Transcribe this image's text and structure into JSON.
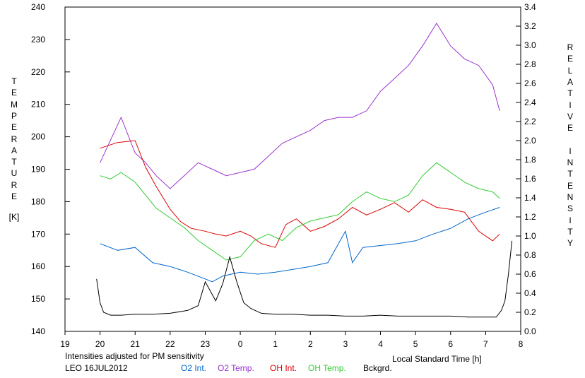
{
  "chart_data": {
    "type": "line",
    "y_left_label": "TEMPERATURE",
    "y_left_unit": "[K]",
    "y_right_label": "RELATIVE INTENSITY",
    "xlabel": "Local Standard Time [h]",
    "xlim": [
      19,
      32
    ],
    "x_tick_labels": [
      "19",
      "20",
      "21",
      "22",
      "23",
      "0",
      "1",
      "2",
      "3",
      "4",
      "5",
      "6",
      "7",
      "8"
    ],
    "ylim_left": [
      140,
      240
    ],
    "ylim_right": [
      0.0,
      3.4
    ],
    "left_ticks": [
      140,
      150,
      160,
      170,
      180,
      190,
      200,
      210,
      220,
      230,
      240
    ],
    "right_ticks": [
      "0.0",
      "0.2",
      "0.4",
      "0.6",
      "0.8",
      "1.0",
      "1.2",
      "1.4",
      "1.6",
      "1.8",
      "2.0",
      "2.2",
      "2.4",
      "2.6",
      "2.8",
      "3.0",
      "3.2",
      "3.4"
    ],
    "annotation": "Intensities adjusted for PM sensitivity",
    "annotation_color": "#00cc00",
    "station_date": "LEO 16JUL2012",
    "series": [
      {
        "name": "O2 Int.",
        "axis": "right",
        "color": "#0066cc",
        "x": [
          20.0,
          20.5,
          21.0,
          21.5,
          22.0,
          22.5,
          23.0,
          23.2,
          23.5,
          24.0,
          24.5,
          25.0,
          25.5,
          26.0,
          26.5,
          27.0,
          27.2,
          27.5,
          28.0,
          28.5,
          29.0,
          29.5,
          30.0,
          30.5,
          31.0,
          31.4
        ],
        "y": [
          0.92,
          0.85,
          0.88,
          0.72,
          0.68,
          0.62,
          0.55,
          0.52,
          0.58,
          0.62,
          0.6,
          0.62,
          0.65,
          0.68,
          0.72,
          1.05,
          0.72,
          0.88,
          0.9,
          0.92,
          0.95,
          1.02,
          1.08,
          1.18,
          1.25,
          1.3
        ]
      },
      {
        "name": "O2 Temp.",
        "axis": "left",
        "color": "#9933cc",
        "x": [
          20.0,
          20.3,
          20.6,
          21.0,
          21.3,
          21.6,
          22.0,
          22.4,
          22.8,
          23.2,
          23.6,
          24.4,
          24.8,
          25.2,
          25.6,
          26.0,
          26.4,
          26.8,
          27.2,
          27.6,
          28.0,
          28.4,
          28.8,
          29.2,
          29.6,
          30.0,
          30.4,
          30.8,
          31.2,
          31.4
        ],
        "y": [
          192,
          199,
          206,
          195,
          192,
          188,
          184,
          188,
          192,
          190,
          188,
          190,
          194,
          198,
          200,
          202,
          205,
          206,
          206,
          208,
          214,
          218,
          222,
          228,
          235,
          228,
          224,
          222,
          216,
          208
        ]
      },
      {
        "name": "OH Int.",
        "axis": "right",
        "color": "#dd0000",
        "x": [
          20.0,
          20.5,
          21.0,
          21.3,
          21.6,
          22.0,
          22.3,
          22.6,
          23.0,
          23.3,
          23.6,
          24.0,
          24.3,
          24.6,
          25.0,
          25.3,
          25.6,
          26.0,
          26.4,
          26.8,
          27.2,
          27.6,
          28.0,
          28.4,
          28.8,
          29.2,
          29.6,
          30.0,
          30.4,
          30.8,
          31.2,
          31.4
        ],
        "y": [
          1.92,
          1.98,
          2.0,
          1.72,
          1.52,
          1.28,
          1.15,
          1.08,
          1.05,
          1.02,
          1.0,
          1.05,
          1.0,
          0.92,
          0.88,
          1.12,
          1.18,
          1.05,
          1.1,
          1.18,
          1.3,
          1.22,
          1.28,
          1.35,
          1.25,
          1.38,
          1.3,
          1.28,
          1.25,
          1.05,
          0.95,
          1.02
        ]
      },
      {
        "name": "OH Temp.",
        "axis": "left",
        "color": "#33cc33",
        "x": [
          20.0,
          20.3,
          20.6,
          21.0,
          21.3,
          21.6,
          22.0,
          22.4,
          22.8,
          23.2,
          23.6,
          24.0,
          24.4,
          24.8,
          25.2,
          25.6,
          26.0,
          26.4,
          26.8,
          27.2,
          27.6,
          28.0,
          28.4,
          28.8,
          29.2,
          29.6,
          30.0,
          30.4,
          30.8,
          31.2,
          31.4
        ],
        "y": [
          188,
          187,
          189,
          186,
          182,
          178,
          175,
          172,
          168,
          165,
          162,
          163,
          168,
          170,
          168,
          172,
          174,
          175,
          176,
          180,
          183,
          181,
          180,
          182,
          188,
          192,
          189,
          186,
          184,
          183,
          181
        ]
      },
      {
        "name": "Bckgrd.",
        "axis": "right",
        "color": "#000000",
        "x": [
          19.9,
          20.0,
          20.1,
          20.3,
          20.6,
          21.0,
          21.5,
          22.0,
          22.5,
          22.8,
          23.0,
          23.3,
          23.5,
          23.7,
          23.9,
          24.1,
          24.3,
          24.6,
          25.0,
          25.5,
          26.0,
          26.5,
          27.0,
          27.5,
          28.0,
          28.5,
          29.0,
          29.5,
          30.0,
          30.5,
          31.0,
          31.3,
          31.45,
          31.55,
          31.65,
          31.75
        ],
        "y": [
          0.55,
          0.3,
          0.2,
          0.17,
          0.17,
          0.18,
          0.18,
          0.19,
          0.22,
          0.27,
          0.52,
          0.32,
          0.5,
          0.78,
          0.52,
          0.3,
          0.24,
          0.19,
          0.18,
          0.18,
          0.17,
          0.17,
          0.16,
          0.16,
          0.17,
          0.16,
          0.16,
          0.16,
          0.16,
          0.15,
          0.15,
          0.15,
          0.22,
          0.32,
          0.6,
          0.95
        ]
      }
    ]
  }
}
